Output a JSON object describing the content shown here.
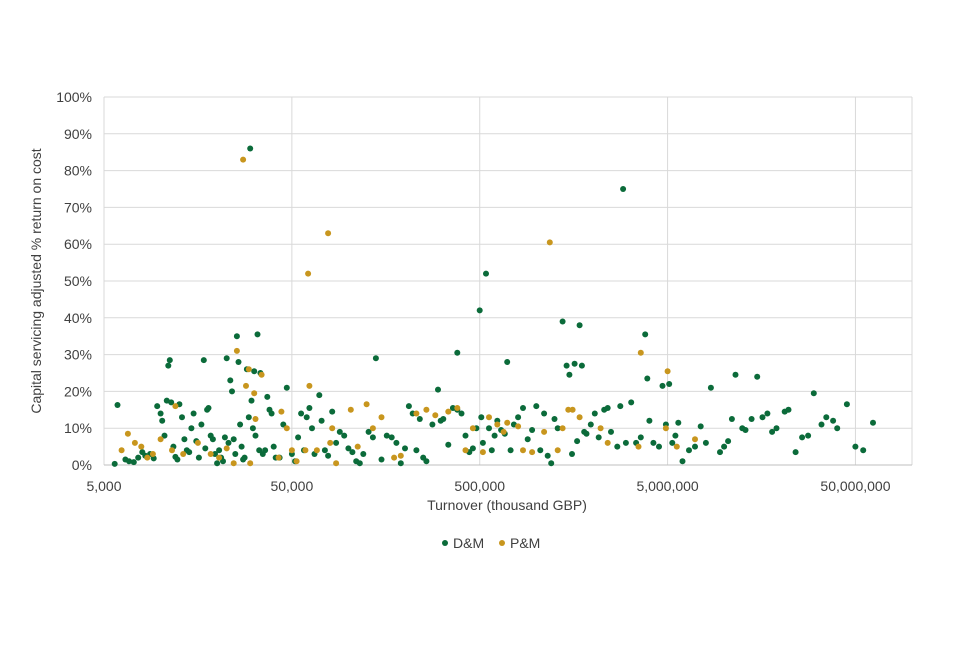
{
  "chart_data": {
    "type": "scatter",
    "title": "",
    "xlabel": "Turnover (thousand GBP)",
    "ylabel": "Capital servicing adjusted  % return on cost",
    "x_scale": "log",
    "xlim": [
      5000,
      100000000
    ],
    "ylim": [
      0,
      1
    ],
    "x_ticks": [
      {
        "value": 5000,
        "label": "5,000"
      },
      {
        "value": 50000,
        "label": "50,000"
      },
      {
        "value": 500000,
        "label": "500,000"
      },
      {
        "value": 5000000,
        "label": "5,000,000"
      },
      {
        "value": 50000000,
        "label": "50,000,000"
      }
    ],
    "y_ticks": [
      {
        "value": 0,
        "label": "0%"
      },
      {
        "value": 0.1,
        "label": "10%"
      },
      {
        "value": 0.2,
        "label": "20%"
      },
      {
        "value": 0.3,
        "label": "30%"
      },
      {
        "value": 0.4,
        "label": "40%"
      },
      {
        "value": 0.5,
        "label": "50%"
      },
      {
        "value": 0.6,
        "label": "60%"
      },
      {
        "value": 0.7,
        "label": "70%"
      },
      {
        "value": 0.8,
        "label": "80%"
      },
      {
        "value": 0.9,
        "label": "90%"
      },
      {
        "value": 1.0,
        "label": "100%"
      }
    ],
    "grid": true,
    "legend_position": "bottom",
    "series": [
      {
        "name": "D&M",
        "color": "#0b6b3a",
        "points": [
          [
            5700,
            0.003
          ],
          [
            5900,
            0.163
          ],
          [
            6500,
            0.015
          ],
          [
            6800,
            0.01
          ],
          [
            7200,
            0.008
          ],
          [
            7600,
            0.02
          ],
          [
            8000,
            0.035
          ],
          [
            8300,
            0.025
          ],
          [
            8800,
            0.03
          ],
          [
            9200,
            0.018
          ],
          [
            9600,
            0.16
          ],
          [
            10000,
            0.14
          ],
          [
            10200,
            0.12
          ],
          [
            10500,
            0.08
          ],
          [
            10800,
            0.175
          ],
          [
            11000,
            0.27
          ],
          [
            11200,
            0.285
          ],
          [
            11400,
            0.17
          ],
          [
            11700,
            0.05
          ],
          [
            12000,
            0.022
          ],
          [
            12300,
            0.015
          ],
          [
            12600,
            0.165
          ],
          [
            13000,
            0.13
          ],
          [
            13400,
            0.07
          ],
          [
            13800,
            0.04
          ],
          [
            14200,
            0.035
          ],
          [
            14600,
            0.1
          ],
          [
            15000,
            0.14
          ],
          [
            15500,
            0.065
          ],
          [
            16000,
            0.02
          ],
          [
            16500,
            0.11
          ],
          [
            17000,
            0.285
          ],
          [
            17300,
            0.045
          ],
          [
            17700,
            0.15
          ],
          [
            18000,
            0.155
          ],
          [
            18500,
            0.08
          ],
          [
            19000,
            0.07
          ],
          [
            19500,
            0.03
          ],
          [
            20000,
            0.005
          ],
          [
            20500,
            0.04
          ],
          [
            21000,
            0.02
          ],
          [
            21500,
            0.01
          ],
          [
            22000,
            0.075
          ],
          [
            22500,
            0.29
          ],
          [
            23000,
            0.06
          ],
          [
            23500,
            0.23
          ],
          [
            24000,
            0.2
          ],
          [
            24500,
            0.07
          ],
          [
            25000,
            0.03
          ],
          [
            25500,
            0.35
          ],
          [
            26000,
            0.28
          ],
          [
            26500,
            0.11
          ],
          [
            27000,
            0.05
          ],
          [
            27500,
            0.015
          ],
          [
            28000,
            0.02
          ],
          [
            28800,
            0.26
          ],
          [
            29500,
            0.13
          ],
          [
            30000,
            0.86
          ],
          [
            30500,
            0.175
          ],
          [
            31000,
            0.1
          ],
          [
            31500,
            0.255
          ],
          [
            32000,
            0.08
          ],
          [
            32800,
            0.355
          ],
          [
            33500,
            0.04
          ],
          [
            34000,
            0.25
          ],
          [
            35000,
            0.03
          ],
          [
            36000,
            0.04
          ],
          [
            37000,
            0.185
          ],
          [
            38000,
            0.15
          ],
          [
            39000,
            0.14
          ],
          [
            40000,
            0.05
          ],
          [
            41000,
            0.02
          ],
          [
            43000,
            0.02
          ],
          [
            45000,
            0.11
          ],
          [
            47000,
            0.21
          ],
          [
            50000,
            0.03
          ],
          [
            52000,
            0.01
          ],
          [
            54000,
            0.075
          ],
          [
            56000,
            0.14
          ],
          [
            58000,
            0.04
          ],
          [
            60000,
            0.13
          ],
          [
            62000,
            0.155
          ],
          [
            64000,
            0.1
          ],
          [
            66000,
            0.03
          ],
          [
            70000,
            0.19
          ],
          [
            72000,
            0.12
          ],
          [
            75000,
            0.04
          ],
          [
            78000,
            0.025
          ],
          [
            82000,
            0.145
          ],
          [
            86000,
            0.06
          ],
          [
            90000,
            0.09
          ],
          [
            95000,
            0.08
          ],
          [
            100000,
            0.045
          ],
          [
            105000,
            0.035
          ],
          [
            110000,
            0.01
          ],
          [
            115000,
            0.005
          ],
          [
            120000,
            0.03
          ],
          [
            128000,
            0.09
          ],
          [
            135000,
            0.075
          ],
          [
            140000,
            0.29
          ],
          [
            150000,
            0.015
          ],
          [
            160000,
            0.08
          ],
          [
            170000,
            0.075
          ],
          [
            180000,
            0.06
          ],
          [
            190000,
            0.005
          ],
          [
            200000,
            0.045
          ],
          [
            210000,
            0.16
          ],
          [
            220000,
            0.14
          ],
          [
            230000,
            0.04
          ],
          [
            240000,
            0.125
          ],
          [
            250000,
            0.02
          ],
          [
            260000,
            0.01
          ],
          [
            280000,
            0.11
          ],
          [
            300000,
            0.205
          ],
          [
            310000,
            0.12
          ],
          [
            320000,
            0.125
          ],
          [
            340000,
            0.055
          ],
          [
            360000,
            0.155
          ],
          [
            380000,
            0.15
          ],
          [
            380000,
            0.305
          ],
          [
            400000,
            0.14
          ],
          [
            420000,
            0.08
          ],
          [
            440000,
            0.035
          ],
          [
            460000,
            0.045
          ],
          [
            480000,
            0.1
          ],
          [
            500000,
            0.42
          ],
          [
            510000,
            0.13
          ],
          [
            520000,
            0.06
          ],
          [
            540000,
            0.52
          ],
          [
            560000,
            0.1
          ],
          [
            580000,
            0.04
          ],
          [
            600000,
            0.08
          ],
          [
            620000,
            0.12
          ],
          [
            650000,
            0.095
          ],
          [
            680000,
            0.085
          ],
          [
            700000,
            0.28
          ],
          [
            730000,
            0.04
          ],
          [
            760000,
            0.11
          ],
          [
            800000,
            0.13
          ],
          [
            850000,
            0.155
          ],
          [
            900000,
            0.07
          ],
          [
            950000,
            0.095
          ],
          [
            1000000,
            0.16
          ],
          [
            1050000,
            0.04
          ],
          [
            1100000,
            0.14
          ],
          [
            1150000,
            0.025
          ],
          [
            1200000,
            0.005
          ],
          [
            1250000,
            0.125
          ],
          [
            1300000,
            0.1
          ],
          [
            1380000,
            0.39
          ],
          [
            1450000,
            0.27
          ],
          [
            1500000,
            0.245
          ],
          [
            1550000,
            0.03
          ],
          [
            1600000,
            0.275
          ],
          [
            1650000,
            0.065
          ],
          [
            1700000,
            0.38
          ],
          [
            1750000,
            0.27
          ],
          [
            1800000,
            0.09
          ],
          [
            1850000,
            0.085
          ],
          [
            1950000,
            0.11
          ],
          [
            2050000,
            0.14
          ],
          [
            2150000,
            0.075
          ],
          [
            2300000,
            0.15
          ],
          [
            2400000,
            0.155
          ],
          [
            2500000,
            0.09
          ],
          [
            2700000,
            0.05
          ],
          [
            2800000,
            0.16
          ],
          [
            2900000,
            0.75
          ],
          [
            3000000,
            0.06
          ],
          [
            3200000,
            0.17
          ],
          [
            3400000,
            0.06
          ],
          [
            3600000,
            0.075
          ],
          [
            3800000,
            0.355
          ],
          [
            3900000,
            0.235
          ],
          [
            4000000,
            0.12
          ],
          [
            4200000,
            0.06
          ],
          [
            4500000,
            0.05
          ],
          [
            4700000,
            0.215
          ],
          [
            4900000,
            0.11
          ],
          [
            5100000,
            0.22
          ],
          [
            5300000,
            0.06
          ],
          [
            5500000,
            0.08
          ],
          [
            5700000,
            0.115
          ],
          [
            6000000,
            0.01
          ],
          [
            6500000,
            0.04
          ],
          [
            7000000,
            0.05
          ],
          [
            7500000,
            0.105
          ],
          [
            8000000,
            0.06
          ],
          [
            8500000,
            0.21
          ],
          [
            9500000,
            0.035
          ],
          [
            10000000,
            0.05
          ],
          [
            10500000,
            0.065
          ],
          [
            11000000,
            0.125
          ],
          [
            11500000,
            0.245
          ],
          [
            12500000,
            0.1
          ],
          [
            13000000,
            0.095
          ],
          [
            14000000,
            0.125
          ],
          [
            15000000,
            0.24
          ],
          [
            16000000,
            0.13
          ],
          [
            17000000,
            0.14
          ],
          [
            18000000,
            0.09
          ],
          [
            19000000,
            0.1
          ],
          [
            21000000,
            0.145
          ],
          [
            22000000,
            0.15
          ],
          [
            24000000,
            0.035
          ],
          [
            26000000,
            0.075
          ],
          [
            28000000,
            0.08
          ],
          [
            30000000,
            0.195
          ],
          [
            33000000,
            0.11
          ],
          [
            35000000,
            0.13
          ],
          [
            38000000,
            0.12
          ],
          [
            40000000,
            0.1
          ],
          [
            45000000,
            0.165
          ],
          [
            50000000,
            0.05
          ],
          [
            55000000,
            0.04
          ],
          [
            62000000,
            0.115
          ]
        ]
      },
      {
        "name": "P&M",
        "color": "#c8961e",
        "points": [
          [
            6200,
            0.04
          ],
          [
            6700,
            0.085
          ],
          [
            7300,
            0.06
          ],
          [
            7900,
            0.05
          ],
          [
            8500,
            0.02
          ],
          [
            9100,
            0.03
          ],
          [
            10000,
            0.07
          ],
          [
            11500,
            0.04
          ],
          [
            12000,
            0.16
          ],
          [
            13200,
            0.03
          ],
          [
            15800,
            0.06
          ],
          [
            18500,
            0.03
          ],
          [
            20500,
            0.02
          ],
          [
            22500,
            0.045
          ],
          [
            24500,
            0.005
          ],
          [
            25500,
            0.31
          ],
          [
            27500,
            0.83
          ],
          [
            28500,
            0.215
          ],
          [
            29500,
            0.26
          ],
          [
            30000,
            0.005
          ],
          [
            31500,
            0.195
          ],
          [
            32000,
            0.125
          ],
          [
            34500,
            0.245
          ],
          [
            42500,
            0.02
          ],
          [
            44000,
            0.145
          ],
          [
            47000,
            0.1
          ],
          [
            50000,
            0.04
          ],
          [
            53000,
            0.01
          ],
          [
            59000,
            0.04
          ],
          [
            61000,
            0.52
          ],
          [
            62000,
            0.215
          ],
          [
            68000,
            0.04
          ],
          [
            78000,
            0.63
          ],
          [
            80000,
            0.06
          ],
          [
            82000,
            0.1
          ],
          [
            86000,
            0.005
          ],
          [
            103000,
            0.15
          ],
          [
            112000,
            0.05
          ],
          [
            125000,
            0.165
          ],
          [
            135000,
            0.1
          ],
          [
            150000,
            0.13
          ],
          [
            175000,
            0.02
          ],
          [
            190000,
            0.025
          ],
          [
            230000,
            0.14
          ],
          [
            260000,
            0.15
          ],
          [
            290000,
            0.135
          ],
          [
            340000,
            0.145
          ],
          [
            380000,
            0.155
          ],
          [
            420000,
            0.04
          ],
          [
            460000,
            0.1
          ],
          [
            520000,
            0.035
          ],
          [
            560000,
            0.13
          ],
          [
            620000,
            0.11
          ],
          [
            670000,
            0.09
          ],
          [
            700000,
            0.115
          ],
          [
            800000,
            0.105
          ],
          [
            850000,
            0.04
          ],
          [
            950000,
            0.035
          ],
          [
            1100000,
            0.09
          ],
          [
            1180000,
            0.605
          ],
          [
            1300000,
            0.04
          ],
          [
            1380000,
            0.1
          ],
          [
            1480000,
            0.15
          ],
          [
            1560000,
            0.15
          ],
          [
            1700000,
            0.13
          ],
          [
            2200000,
            0.1
          ],
          [
            2400000,
            0.06
          ],
          [
            3500000,
            0.05
          ],
          [
            3600000,
            0.305
          ],
          [
            4900000,
            0.1
          ],
          [
            5000000,
            0.255
          ],
          [
            5600000,
            0.05
          ],
          [
            7000000,
            0.07
          ]
        ]
      }
    ]
  }
}
